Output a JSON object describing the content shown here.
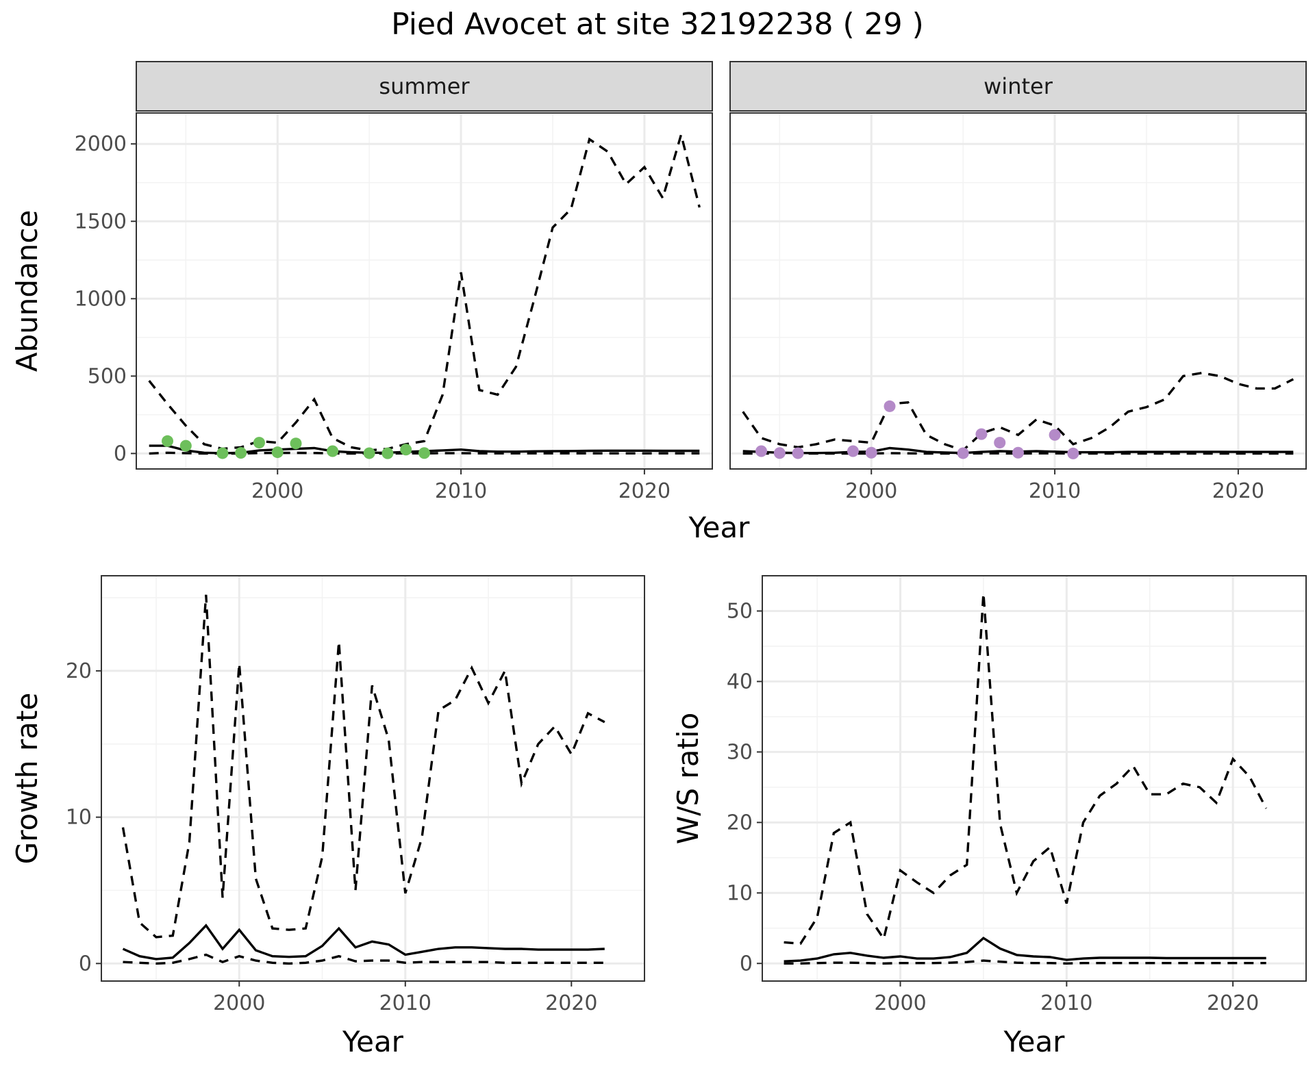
{
  "title": "Pied Avocet at site 32192238 ( 29 )",
  "colors": {
    "summer_points": "#6dbf5b",
    "winter_points": "#b48ac8",
    "strip_bg": "#d9d9d9"
  },
  "chart_data": [
    {
      "type": "line",
      "panel": "summer",
      "strip_label": "summer",
      "xlabel": "Year",
      "ylabel": "Abundance",
      "xlim": [
        1992.3,
        2023.7
      ],
      "ylim": [
        -100,
        2200
      ],
      "xticks": [
        2000,
        2010,
        2020
      ],
      "yticks": [
        0,
        500,
        1000,
        1500,
        2000
      ],
      "grid": true,
      "series": [
        {
          "style": "dashed",
          "x": [
            1993,
            1994,
            1995,
            1996,
            1997,
            1998,
            1999,
            2000,
            2001,
            2002,
            2003,
            2004,
            2005,
            2006,
            2007,
            2008,
            2009,
            2010,
            2011,
            2012,
            2013,
            2014,
            2015,
            2016,
            2017,
            2018,
            2019,
            2020,
            2021,
            2022,
            2023
          ],
          "values": [
            470,
            320,
            180,
            60,
            30,
            40,
            80,
            70,
            200,
            350,
            100,
            40,
            20,
            30,
            60,
            80,
            380,
            1170,
            410,
            380,
            560,
            1000,
            1460,
            1580,
            2030,
            1950,
            1740,
            1850,
            1650,
            2060,
            1590
          ]
        },
        {
          "style": "solid",
          "x": [
            1993,
            1994,
            1995,
            1996,
            1997,
            1998,
            1999,
            2000,
            2001,
            2002,
            2003,
            2004,
            2005,
            2006,
            2007,
            2008,
            2009,
            2010,
            2011,
            2012,
            2013,
            2014,
            2015,
            2016,
            2017,
            2018,
            2019,
            2020,
            2021,
            2022,
            2023
          ],
          "values": [
            50,
            50,
            20,
            5,
            2,
            5,
            20,
            25,
            30,
            35,
            15,
            8,
            5,
            5,
            10,
            15,
            20,
            25,
            15,
            12,
            12,
            14,
            15,
            16,
            17,
            18,
            18,
            18,
            17,
            17,
            17
          ]
        },
        {
          "style": "dashed",
          "x": [
            1993,
            1994,
            1995,
            1996,
            1997,
            1998,
            1999,
            2000,
            2001,
            2002,
            2003,
            2004,
            2005,
            2006,
            2007,
            2008,
            2009,
            2010,
            2011,
            2012,
            2013,
            2014,
            2015,
            2016,
            2017,
            2018,
            2019,
            2020,
            2021,
            2022,
            2023
          ],
          "values": [
            0,
            5,
            2,
            0,
            0,
            0,
            3,
            4,
            4,
            3,
            1,
            0,
            0,
            0,
            1,
            1,
            2,
            2,
            1,
            1,
            1,
            1,
            1,
            1,
            1,
            1,
            1,
            1,
            1,
            1,
            1
          ]
        }
      ],
      "points": {
        "x": [
          1994,
          1995,
          1997,
          1998,
          1999,
          2000,
          2001,
          2003,
          2005,
          2006,
          2007,
          2008
        ],
        "values": [
          80,
          50,
          2,
          4,
          70,
          8,
          65,
          15,
          2,
          1,
          25,
          3
        ]
      }
    },
    {
      "type": "line",
      "panel": "winter",
      "strip_label": "winter",
      "xlabel": "Year",
      "ylabel": "",
      "xlim": [
        1992.3,
        2023.7
      ],
      "ylim": [
        -100,
        2200
      ],
      "xticks": [
        2000,
        2010,
        2020
      ],
      "yticks": [
        0,
        500,
        1000,
        1500,
        2000
      ],
      "grid": true,
      "series": [
        {
          "style": "dashed",
          "x": [
            1993,
            1994,
            1995,
            1996,
            1997,
            1998,
            1999,
            2000,
            2001,
            2002,
            2003,
            2004,
            2005,
            2006,
            2007,
            2008,
            2009,
            2010,
            2011,
            2012,
            2013,
            2014,
            2015,
            2016,
            2017,
            2018,
            2019,
            2020,
            2021,
            2022,
            2023
          ],
          "values": [
            270,
            100,
            60,
            40,
            60,
            90,
            80,
            70,
            320,
            330,
            120,
            60,
            20,
            130,
            170,
            120,
            220,
            180,
            60,
            100,
            170,
            270,
            300,
            350,
            500,
            520,
            500,
            450,
            420,
            420,
            480
          ]
        },
        {
          "style": "solid",
          "x": [
            1993,
            1994,
            1995,
            1996,
            1997,
            1998,
            1999,
            2000,
            2001,
            2002,
            2003,
            2004,
            2005,
            2006,
            2007,
            2008,
            2009,
            2010,
            2011,
            2012,
            2013,
            2014,
            2015,
            2016,
            2017,
            2018,
            2019,
            2020,
            2021,
            2022,
            2023
          ],
          "values": [
            15,
            10,
            5,
            3,
            3,
            5,
            10,
            12,
            35,
            25,
            10,
            6,
            3,
            10,
            15,
            12,
            15,
            12,
            8,
            8,
            8,
            10,
            10,
            10,
            11,
            11,
            11,
            10,
            10,
            10,
            10
          ]
        },
        {
          "style": "dashed",
          "x": [
            1993,
            1994,
            1995,
            1996,
            1997,
            1998,
            1999,
            2000,
            2001,
            2002,
            2003,
            2004,
            2005,
            2006,
            2007,
            2008,
            2009,
            2010,
            2011,
            2012,
            2013,
            2014,
            2015,
            2016,
            2017,
            2018,
            2019,
            2020,
            2021,
            2022,
            2023
          ],
          "values": [
            0,
            0,
            0,
            0,
            0,
            0,
            0,
            0,
            2,
            1,
            0,
            0,
            0,
            1,
            1,
            0,
            1,
            1,
            0,
            0,
            0,
            0,
            0,
            0,
            0,
            0,
            0,
            0,
            0,
            0,
            0
          ]
        }
      ],
      "points": {
        "x": [
          1994,
          1995,
          1996,
          1999,
          2000,
          2001,
          2005,
          2006,
          2007,
          2008,
          2010,
          2011
        ],
        "values": [
          15,
          3,
          2,
          15,
          5,
          305,
          2,
          125,
          70,
          5,
          120,
          0
        ]
      }
    },
    {
      "type": "line",
      "panel": "growth",
      "xlabel": "Year",
      "ylabel": "Growth rate",
      "xlim": [
        1991.7,
        2024.4
      ],
      "ylim": [
        -1.2,
        26.5
      ],
      "xticks": [
        2000,
        2010,
        2020
      ],
      "yticks": [
        0,
        10,
        20
      ],
      "grid": true,
      "series": [
        {
          "style": "dashed",
          "x": [
            1993,
            1994,
            1995,
            1996,
            1997,
            1998,
            1999,
            2000,
            2001,
            2002,
            2003,
            2004,
            2005,
            2006,
            2007,
            2008,
            2009,
            2010,
            2011,
            2012,
            2013,
            2014,
            2015,
            2016,
            2017,
            2018,
            2019,
            2020,
            2021,
            2022
          ],
          "values": [
            9.3,
            2.8,
            1.8,
            1.9,
            8.3,
            25.2,
            4.5,
            20.5,
            5.8,
            2.4,
            2.3,
            2.4,
            7.3,
            22.0,
            5.0,
            19.0,
            15.3,
            4.8,
            8.6,
            17.3,
            18.0,
            20.2,
            17.8,
            20.0,
            12.3,
            15.0,
            16.2,
            14.3,
            17.1,
            16.5
          ]
        },
        {
          "style": "solid",
          "x": [
            1993,
            1994,
            1995,
            1996,
            1997,
            1998,
            1999,
            2000,
            2001,
            2002,
            2003,
            2004,
            2005,
            2006,
            2007,
            2008,
            2009,
            2010,
            2011,
            2012,
            2013,
            2014,
            2015,
            2016,
            2017,
            2018,
            2019,
            2020,
            2021,
            2022
          ],
          "values": [
            1.0,
            0.5,
            0.3,
            0.4,
            1.4,
            2.6,
            1.0,
            2.3,
            0.9,
            0.5,
            0.45,
            0.5,
            1.2,
            2.4,
            1.1,
            1.5,
            1.3,
            0.6,
            0.8,
            1.0,
            1.1,
            1.1,
            1.05,
            1.0,
            1.0,
            0.95,
            0.95,
            0.95,
            0.95,
            1.0
          ]
        },
        {
          "style": "dashed",
          "x": [
            1993,
            1994,
            1995,
            1996,
            1997,
            1998,
            1999,
            2000,
            2001,
            2002,
            2003,
            2004,
            2005,
            2006,
            2007,
            2008,
            2009,
            2010,
            2011,
            2012,
            2013,
            2014,
            2015,
            2016,
            2017,
            2018,
            2019,
            2020,
            2021,
            2022
          ],
          "values": [
            0.1,
            0.05,
            0,
            0.05,
            0.3,
            0.6,
            0.1,
            0.5,
            0.2,
            0.05,
            0,
            0.05,
            0.2,
            0.5,
            0.15,
            0.2,
            0.2,
            0.05,
            0.1,
            0.1,
            0.1,
            0.1,
            0.1,
            0.05,
            0.05,
            0.05,
            0.05,
            0.05,
            0.05,
            0.05
          ]
        }
      ]
    },
    {
      "type": "line",
      "panel": "ratio",
      "xlabel": "Year",
      "ylabel": "W/S ratio",
      "xlim": [
        1991.7,
        2024.4
      ],
      "ylim": [
        -2.5,
        55
      ],
      "xticks": [
        2000,
        2010,
        2020
      ],
      "yticks": [
        0,
        10,
        20,
        30,
        40,
        50
      ],
      "grid": true,
      "series": [
        {
          "style": "dashed",
          "x": [
            1993,
            1994,
            1995,
            1996,
            1997,
            1998,
            1999,
            2000,
            2001,
            2002,
            2003,
            2004,
            2005,
            2006,
            2007,
            2008,
            2009,
            2010,
            2011,
            2012,
            2013,
            2014,
            2015,
            2016,
            2017,
            2018,
            2019,
            2020,
            2021,
            2022
          ],
          "values": [
            3.0,
            2.8,
            6.5,
            18.5,
            20.0,
            7.0,
            3.5,
            13.2,
            11.5,
            10.0,
            12.5,
            14.0,
            52.5,
            19.8,
            10.0,
            14.5,
            16.5,
            8.5,
            20.0,
            23.8,
            25.5,
            28.0,
            24.0,
            24.0,
            25.5,
            25.0,
            22.8,
            29.0,
            26.5,
            22.0
          ]
        },
        {
          "style": "solid",
          "x": [
            1993,
            1994,
            1995,
            1996,
            1997,
            1998,
            1999,
            2000,
            2001,
            2002,
            2003,
            2004,
            2005,
            2006,
            2007,
            2008,
            2009,
            2010,
            2011,
            2012,
            2013,
            2014,
            2015,
            2016,
            2017,
            2018,
            2019,
            2020,
            2021,
            2022
          ],
          "values": [
            0.3,
            0.4,
            0.7,
            1.3,
            1.5,
            1.1,
            0.8,
            1.0,
            0.7,
            0.7,
            0.9,
            1.5,
            3.6,
            2.1,
            1.2,
            1.0,
            0.9,
            0.5,
            0.7,
            0.8,
            0.8,
            0.8,
            0.8,
            0.75,
            0.75,
            0.75,
            0.75,
            0.75,
            0.75,
            0.75
          ]
        },
        {
          "style": "dashed",
          "x": [
            1993,
            1994,
            1995,
            1996,
            1997,
            1998,
            1999,
            2000,
            2001,
            2002,
            2003,
            2004,
            2005,
            2006,
            2007,
            2008,
            2009,
            2010,
            2011,
            2012,
            2013,
            2014,
            2015,
            2016,
            2017,
            2018,
            2019,
            2020,
            2021,
            2022
          ],
          "values": [
            0,
            0,
            0.05,
            0.1,
            0.1,
            0.05,
            0,
            0.05,
            0.05,
            0.05,
            0.1,
            0.2,
            0.4,
            0.25,
            0.1,
            0.05,
            0.05,
            0,
            0.05,
            0.05,
            0.05,
            0.05,
            0.05,
            0.05,
            0.05,
            0.05,
            0.05,
            0.05,
            0.05,
            0.05
          ]
        }
      ]
    }
  ]
}
